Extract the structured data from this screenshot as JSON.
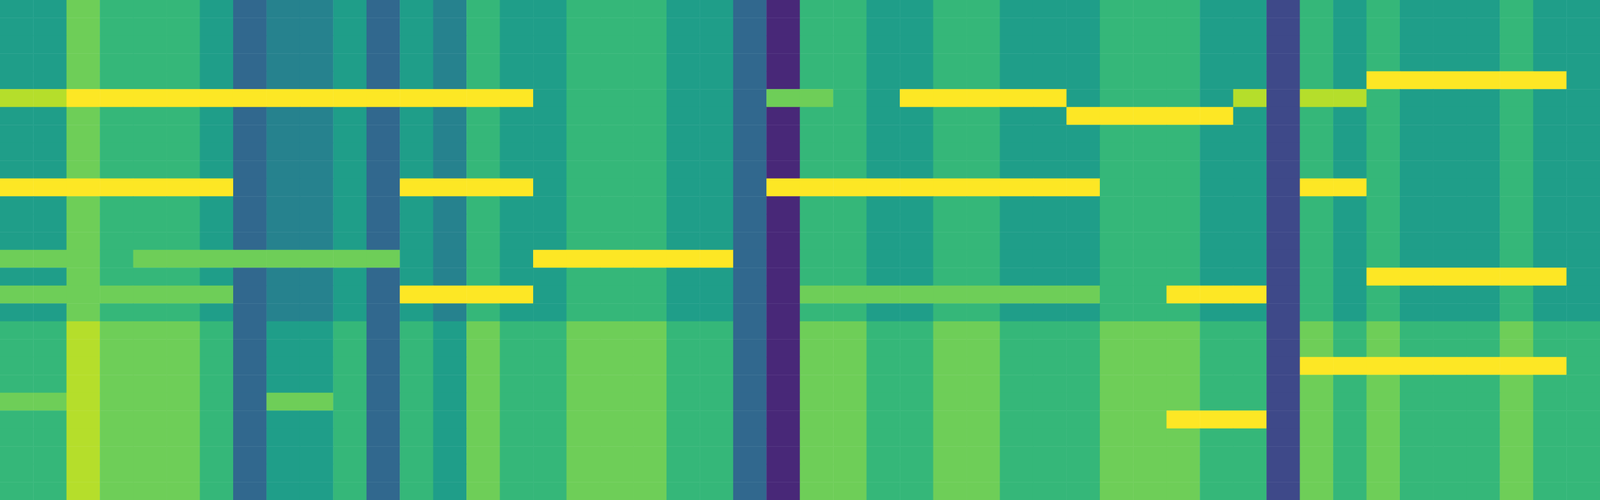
{
  "chart_data": {
    "type": "heatmap",
    "tick_labels": false,
    "zlim": [
      0,
      9
    ],
    "cells": [
      [
        5,
        5,
        7,
        6,
        6,
        6,
        5,
        3,
        4,
        4,
        5,
        3,
        5,
        4,
        6,
        5,
        5,
        6,
        6,
        6,
        5,
        5,
        3,
        1,
        6,
        6,
        5,
        5,
        6,
        6,
        5,
        5,
        5,
        6,
        6,
        6,
        5,
        5,
        2,
        6,
        5,
        6,
        5,
        5,
        5,
        6,
        5,
        5
      ],
      [
        5,
        5,
        7,
        6,
        6,
        6,
        5,
        3,
        4,
        4,
        5,
        3,
        5,
        4,
        6,
        5,
        5,
        6,
        6,
        6,
        5,
        5,
        3,
        1,
        6,
        6,
        5,
        5,
        6,
        6,
        5,
        5,
        5,
        6,
        6,
        6,
        5,
        5,
        2,
        6,
        5,
        6,
        5,
        5,
        5,
        6,
        5,
        5
      ],
      [
        5,
        5,
        7,
        6,
        6,
        6,
        5,
        3,
        4,
        4,
        5,
        3,
        5,
        4,
        6,
        5,
        5,
        6,
        6,
        6,
        5,
        5,
        3,
        1,
        6,
        6,
        5,
        5,
        6,
        6,
        5,
        5,
        5,
        6,
        6,
        6,
        5,
        5,
        2,
        6,
        5,
        6,
        5,
        5,
        5,
        6,
        5,
        5
      ],
      [
        5,
        5,
        7,
        6,
        6,
        6,
        5,
        3,
        4,
        4,
        5,
        3,
        5,
        4,
        6,
        5,
        5,
        6,
        6,
        6,
        5,
        5,
        3,
        1,
        6,
        6,
        5,
        5,
        6,
        6,
        5,
        5,
        5,
        6,
        6,
        6,
        5,
        5,
        2,
        6,
        5,
        6,
        5,
        5,
        5,
        6,
        5,
        5
      ],
      [
        5,
        5,
        7,
        6,
        6,
        6,
        5,
        3,
        4,
        4,
        5,
        3,
        5,
        4,
        6,
        5,
        5,
        6,
        6,
        6,
        5,
        5,
        3,
        1,
        6,
        6,
        5,
        5,
        6,
        6,
        5,
        5,
        5,
        6,
        6,
        6,
        5,
        5,
        2,
        6,
        5,
        9,
        9,
        9,
        9,
        9,
        9,
        5
      ],
      [
        8,
        8,
        9,
        9,
        9,
        9,
        9,
        9,
        9,
        9,
        9,
        9,
        9,
        9,
        9,
        9,
        5,
        6,
        6,
        6,
        5,
        5,
        3,
        7,
        7,
        6,
        5,
        9,
        9,
        9,
        9,
        9,
        5,
        6,
        6,
        6,
        5,
        8,
        2,
        8,
        8,
        6,
        5,
        5,
        5,
        6,
        5,
        5
      ],
      [
        5,
        5,
        7,
        6,
        6,
        6,
        5,
        3,
        4,
        4,
        5,
        3,
        5,
        4,
        6,
        5,
        5,
        6,
        6,
        6,
        5,
        5,
        3,
        1,
        6,
        6,
        5,
        5,
        6,
        6,
        5,
        5,
        9,
        9,
        9,
        9,
        9,
        5,
        2,
        6,
        5,
        6,
        5,
        5,
        5,
        6,
        5,
        5
      ],
      [
        5,
        5,
        7,
        6,
        6,
        6,
        5,
        3,
        4,
        4,
        5,
        3,
        5,
        4,
        6,
        5,
        5,
        6,
        6,
        6,
        5,
        5,
        3,
        1,
        6,
        6,
        5,
        5,
        6,
        6,
        5,
        5,
        5,
        6,
        6,
        6,
        5,
        5,
        2,
        6,
        5,
        6,
        5,
        5,
        5,
        6,
        5,
        5
      ],
      [
        5,
        5,
        7,
        6,
        6,
        6,
        5,
        3,
        4,
        4,
        5,
        3,
        5,
        4,
        6,
        5,
        5,
        6,
        6,
        6,
        5,
        5,
        3,
        1,
        6,
        6,
        5,
        5,
        6,
        6,
        5,
        5,
        5,
        6,
        6,
        6,
        5,
        5,
        2,
        6,
        5,
        6,
        5,
        5,
        5,
        6,
        5,
        5
      ],
      [
        5,
        5,
        7,
        6,
        6,
        6,
        5,
        3,
        4,
        4,
        5,
        3,
        5,
        4,
        6,
        5,
        5,
        6,
        6,
        6,
        5,
        5,
        3,
        1,
        6,
        6,
        5,
        5,
        6,
        6,
        5,
        5,
        5,
        6,
        6,
        6,
        5,
        5,
        2,
        6,
        5,
        6,
        5,
        5,
        5,
        6,
        5,
        5
      ],
      [
        9,
        9,
        9,
        9,
        9,
        9,
        9,
        3,
        4,
        4,
        5,
        3,
        9,
        9,
        9,
        9,
        5,
        6,
        6,
        6,
        5,
        5,
        3,
        9,
        9,
        9,
        9,
        9,
        9,
        9,
        9,
        9,
        9,
        6,
        6,
        6,
        5,
        5,
        2,
        9,
        9,
        6,
        5,
        5,
        5,
        6,
        5,
        5
      ],
      [
        5,
        5,
        7,
        6,
        6,
        6,
        5,
        3,
        4,
        4,
        5,
        3,
        5,
        4,
        6,
        5,
        5,
        6,
        6,
        6,
        5,
        5,
        3,
        1,
        6,
        6,
        5,
        5,
        6,
        6,
        5,
        5,
        5,
        6,
        6,
        6,
        5,
        5,
        2,
        6,
        5,
        6,
        5,
        5,
        5,
        6,
        5,
        5
      ],
      [
        5,
        5,
        7,
        6,
        6,
        6,
        5,
        3,
        4,
        4,
        5,
        3,
        5,
        4,
        6,
        5,
        5,
        6,
        6,
        6,
        5,
        5,
        3,
        1,
        6,
        6,
        5,
        5,
        6,
        6,
        5,
        5,
        5,
        6,
        6,
        6,
        5,
        5,
        2,
        6,
        5,
        6,
        5,
        5,
        5,
        6,
        5,
        5
      ],
      [
        5,
        5,
        7,
        6,
        6,
        6,
        5,
        3,
        4,
        4,
        5,
        3,
        5,
        4,
        6,
        5,
        5,
        6,
        6,
        6,
        5,
        5,
        3,
        1,
        6,
        6,
        5,
        5,
        6,
        6,
        5,
        5,
        5,
        6,
        6,
        6,
        5,
        5,
        2,
        6,
        5,
        6,
        5,
        5,
        5,
        6,
        5,
        5
      ],
      [
        7,
        7,
        7,
        6,
        7,
        7,
        7,
        7,
        7,
        7,
        7,
        7,
        5,
        4,
        6,
        5,
        9,
        9,
        9,
        9,
        9,
        9,
        3,
        1,
        6,
        6,
        5,
        5,
        6,
        6,
        5,
        5,
        5,
        6,
        6,
        6,
        5,
        5,
        2,
        6,
        5,
        6,
        5,
        5,
        5,
        6,
        5,
        5
      ],
      [
        5,
        5,
        7,
        6,
        6,
        6,
        5,
        3,
        4,
        4,
        5,
        3,
        5,
        4,
        6,
        5,
        5,
        6,
        6,
        6,
        5,
        5,
        3,
        1,
        6,
        6,
        5,
        5,
        6,
        6,
        5,
        5,
        5,
        6,
        6,
        6,
        5,
        5,
        2,
        6,
        5,
        9,
        9,
        9,
        9,
        9,
        9,
        5
      ],
      [
        7,
        7,
        7,
        7,
        7,
        7,
        7,
        3,
        4,
        4,
        5,
        3,
        9,
        9,
        9,
        9,
        5,
        6,
        6,
        6,
        5,
        5,
        3,
        1,
        7,
        7,
        7,
        7,
        7,
        7,
        7,
        7,
        7,
        6,
        6,
        9,
        9,
        9,
        2,
        6,
        5,
        6,
        5,
        5,
        5,
        6,
        5,
        5
      ],
      [
        5,
        5,
        7,
        6,
        6,
        6,
        5,
        3,
        4,
        4,
        5,
        3,
        5,
        4,
        6,
        5,
        5,
        6,
        6,
        6,
        5,
        5,
        3,
        1,
        6,
        6,
        5,
        5,
        6,
        6,
        5,
        5,
        5,
        6,
        6,
        6,
        5,
        5,
        2,
        6,
        5,
        6,
        5,
        5,
        5,
        6,
        5,
        5
      ],
      [
        6,
        6,
        8,
        7,
        7,
        7,
        6,
        3,
        5,
        5,
        6,
        3,
        6,
        5,
        7,
        6,
        6,
        7,
        7,
        7,
        6,
        6,
        3,
        1,
        7,
        7,
        6,
        6,
        7,
        7,
        6,
        6,
        6,
        7,
        7,
        7,
        6,
        6,
        2,
        7,
        6,
        7,
        6,
        6,
        6,
        7,
        6,
        6
      ],
      [
        6,
        6,
        8,
        7,
        7,
        7,
        6,
        3,
        5,
        5,
        6,
        3,
        6,
        5,
        7,
        6,
        6,
        7,
        7,
        7,
        6,
        6,
        3,
        1,
        7,
        7,
        6,
        6,
        7,
        7,
        6,
        6,
        6,
        7,
        7,
        7,
        6,
        6,
        2,
        7,
        6,
        7,
        6,
        6,
        6,
        7,
        6,
        6
      ],
      [
        6,
        6,
        8,
        7,
        7,
        7,
        6,
        3,
        5,
        5,
        6,
        3,
        6,
        5,
        7,
        6,
        6,
        7,
        7,
        7,
        6,
        6,
        3,
        1,
        7,
        7,
        6,
        6,
        7,
        7,
        6,
        6,
        6,
        7,
        7,
        7,
        6,
        6,
        2,
        9,
        9,
        9,
        9,
        9,
        9,
        9,
        9,
        6
      ],
      [
        6,
        6,
        8,
        7,
        7,
        7,
        6,
        3,
        5,
        5,
        6,
        3,
        6,
        5,
        7,
        6,
        6,
        7,
        7,
        7,
        6,
        6,
        3,
        1,
        7,
        7,
        6,
        6,
        7,
        7,
        6,
        6,
        6,
        7,
        7,
        7,
        6,
        6,
        2,
        7,
        6,
        7,
        6,
        6,
        6,
        7,
        6,
        6
      ],
      [
        7,
        7,
        8,
        7,
        7,
        7,
        6,
        3,
        7,
        7,
        6,
        3,
        6,
        5,
        7,
        6,
        6,
        7,
        7,
        7,
        6,
        6,
        3,
        1,
        7,
        7,
        6,
        6,
        7,
        7,
        6,
        6,
        6,
        7,
        7,
        7,
        6,
        6,
        2,
        7,
        6,
        7,
        6,
        6,
        6,
        7,
        6,
        6
      ],
      [
        6,
        6,
        8,
        7,
        7,
        7,
        6,
        3,
        5,
        5,
        6,
        3,
        6,
        5,
        7,
        6,
        6,
        7,
        7,
        7,
        6,
        6,
        3,
        1,
        7,
        7,
        6,
        6,
        7,
        7,
        6,
        6,
        6,
        7,
        7,
        9,
        9,
        9,
        2,
        7,
        6,
        7,
        6,
        6,
        6,
        7,
        6,
        6
      ],
      [
        6,
        6,
        8,
        7,
        7,
        7,
        6,
        3,
        5,
        5,
        6,
        3,
        6,
        5,
        7,
        6,
        6,
        7,
        7,
        7,
        6,
        6,
        3,
        1,
        7,
        7,
        6,
        6,
        7,
        7,
        6,
        6,
        6,
        7,
        7,
        7,
        6,
        6,
        2,
        7,
        6,
        7,
        6,
        6,
        6,
        7,
        6,
        6
      ],
      [
        6,
        6,
        8,
        7,
        7,
        7,
        6,
        3,
        5,
        5,
        6,
        3,
        6,
        5,
        7,
        6,
        6,
        7,
        7,
        7,
        6,
        6,
        3,
        1,
        7,
        7,
        6,
        6,
        7,
        7,
        6,
        6,
        6,
        7,
        7,
        7,
        6,
        6,
        2,
        7,
        6,
        7,
        6,
        6,
        6,
        7,
        6,
        6
      ],
      [
        6,
        6,
        8,
        7,
        7,
        7,
        6,
        3,
        5,
        5,
        6,
        3,
        6,
        5,
        7,
        6,
        6,
        7,
        7,
        7,
        6,
        6,
        3,
        1,
        7,
        7,
        6,
        6,
        7,
        7,
        6,
        6,
        6,
        7,
        7,
        7,
        6,
        6,
        2,
        7,
        6,
        7,
        6,
        6,
        6,
        7,
        6,
        6
      ],
      [
        6,
        6,
        8,
        7,
        7,
        7,
        6,
        3,
        5,
        5,
        6,
        3,
        6,
        5,
        7,
        6,
        6,
        7,
        7,
        7,
        6,
        6,
        3,
        1,
        7,
        7,
        6,
        6,
        7,
        7,
        6,
        6,
        6,
        7,
        7,
        7,
        6,
        6,
        2,
        7,
        6,
        7,
        6,
        6,
        6,
        7,
        6,
        6
      ]
    ]
  }
}
